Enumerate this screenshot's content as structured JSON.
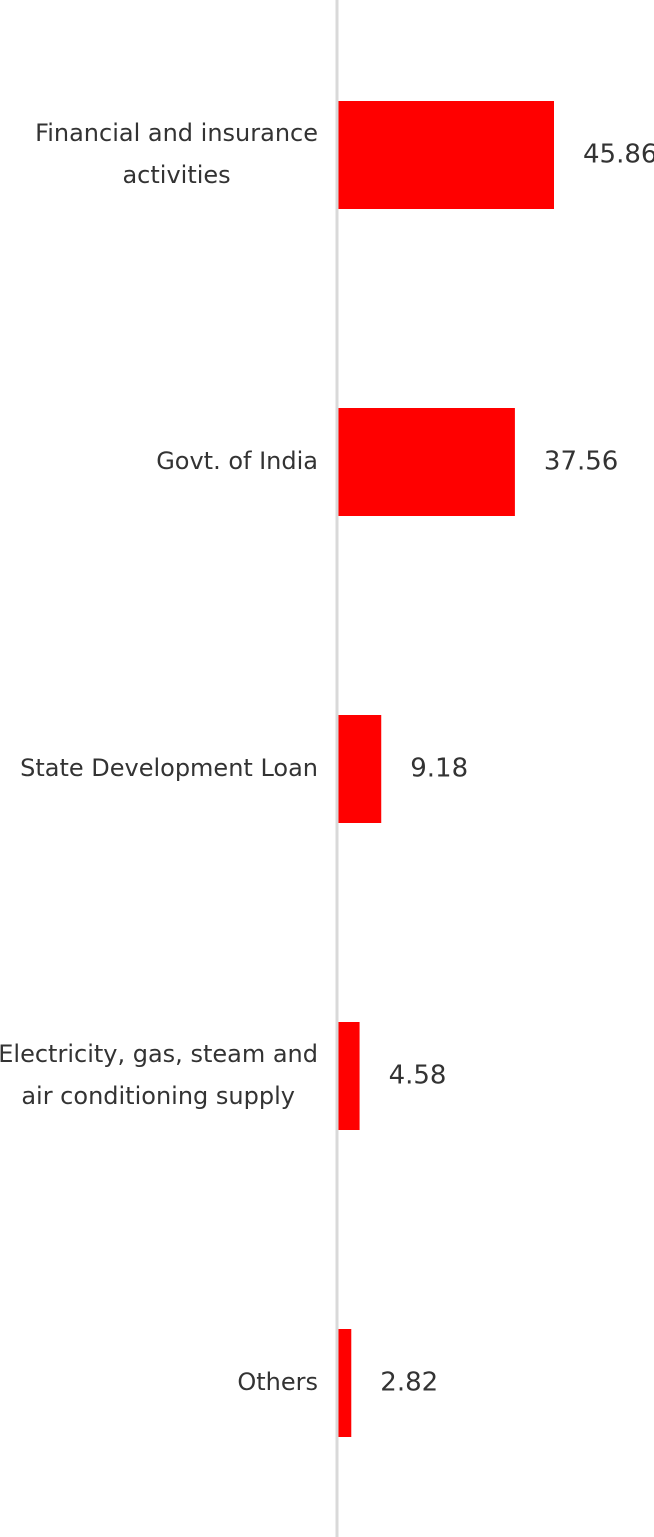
{
  "chart_data": {
    "type": "bar",
    "orientation": "horizontal",
    "categories": [
      "Financial and insurance activities",
      "Govt. of India",
      "State Development Loan",
      "Electricity, gas, steam and air conditioning supply",
      "Others"
    ],
    "category_lines": [
      [
        "Financial and insurance",
        "activities"
      ],
      [
        "Govt. of India"
      ],
      [
        "State Development Loan"
      ],
      [
        "Electricity, gas, steam and",
        "air conditioning supply"
      ],
      [
        "Others"
      ]
    ],
    "values": [
      45.86,
      37.56,
      9.18,
      4.58,
      2.82
    ],
    "value_labels": [
      "45.86",
      "37.56",
      "9.18",
      "4.58",
      "2.82"
    ],
    "xlim": [
      0,
      50
    ],
    "grid": false,
    "bar_color": "#ff0000",
    "axis_color": "#d9d9d9",
    "text_color": "#333333"
  }
}
